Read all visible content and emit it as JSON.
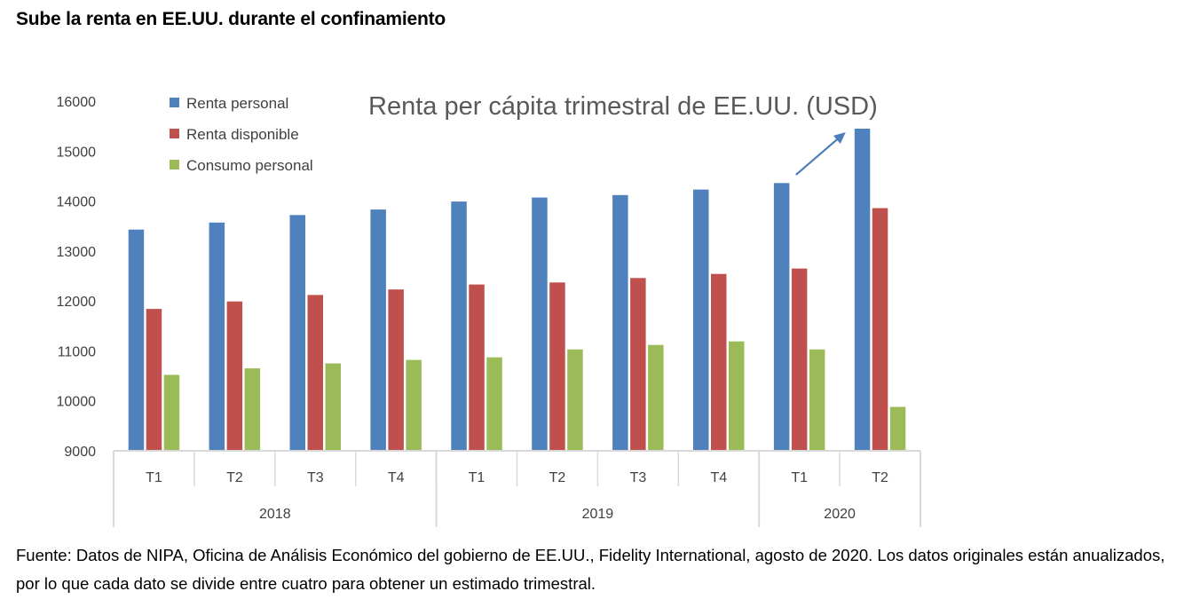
{
  "headline": "Sube la renta en EE.UU. durante el confinamiento",
  "source_note": "Fuente: Datos de NIPA, Oficina de Análisis Económico del gobierno de EE.UU., Fidelity International, agosto de 2020. Los datos originales están anualizados, por lo que cada dato se divide entre cuatro para obtener un estimado trimestral.",
  "colors": {
    "renta_personal": "#4f81bd",
    "renta_disponible": "#c0504d",
    "consumo_personal": "#9bbb59",
    "axis": "#d9d9d9",
    "arrow": "#4a7ebb"
  },
  "chart_data": {
    "type": "bar",
    "title": "Renta per cápita trimestral de EE.UU. (USD)",
    "xlabel": "",
    "ylabel": "",
    "ylim": [
      9000,
      16000
    ],
    "yticks": [
      9000,
      10000,
      11000,
      12000,
      13000,
      14000,
      15000,
      16000
    ],
    "grid": false,
    "legend_position": "top-left",
    "categories": [
      "T1",
      "T2",
      "T3",
      "T4",
      "T1",
      "T2",
      "T3",
      "T4",
      "T1",
      "T2"
    ],
    "groups": [
      {
        "label": "2018",
        "count": 4
      },
      {
        "label": "2019",
        "count": 4
      },
      {
        "label": "2020",
        "count": 2
      }
    ],
    "series": [
      {
        "name": "Renta personal",
        "color_key": "renta_personal",
        "values": [
          13430,
          13570,
          13720,
          13830,
          13990,
          14070,
          14120,
          14230,
          14360,
          15450
        ]
      },
      {
        "name": "Renta disponible",
        "color_key": "renta_disponible",
        "values": [
          11840,
          11990,
          12120,
          12230,
          12330,
          12370,
          12460,
          12540,
          12650,
          13860
        ]
      },
      {
        "name": "Consumo personal",
        "color_key": "consumo_personal",
        "values": [
          10520,
          10650,
          10750,
          10820,
          10870,
          11030,
          11120,
          11190,
          11030,
          9880
        ]
      }
    ],
    "annotations": [
      {
        "type": "arrow",
        "description": "upward arrow pointing to 2020 T2 Renta personal"
      }
    ]
  }
}
